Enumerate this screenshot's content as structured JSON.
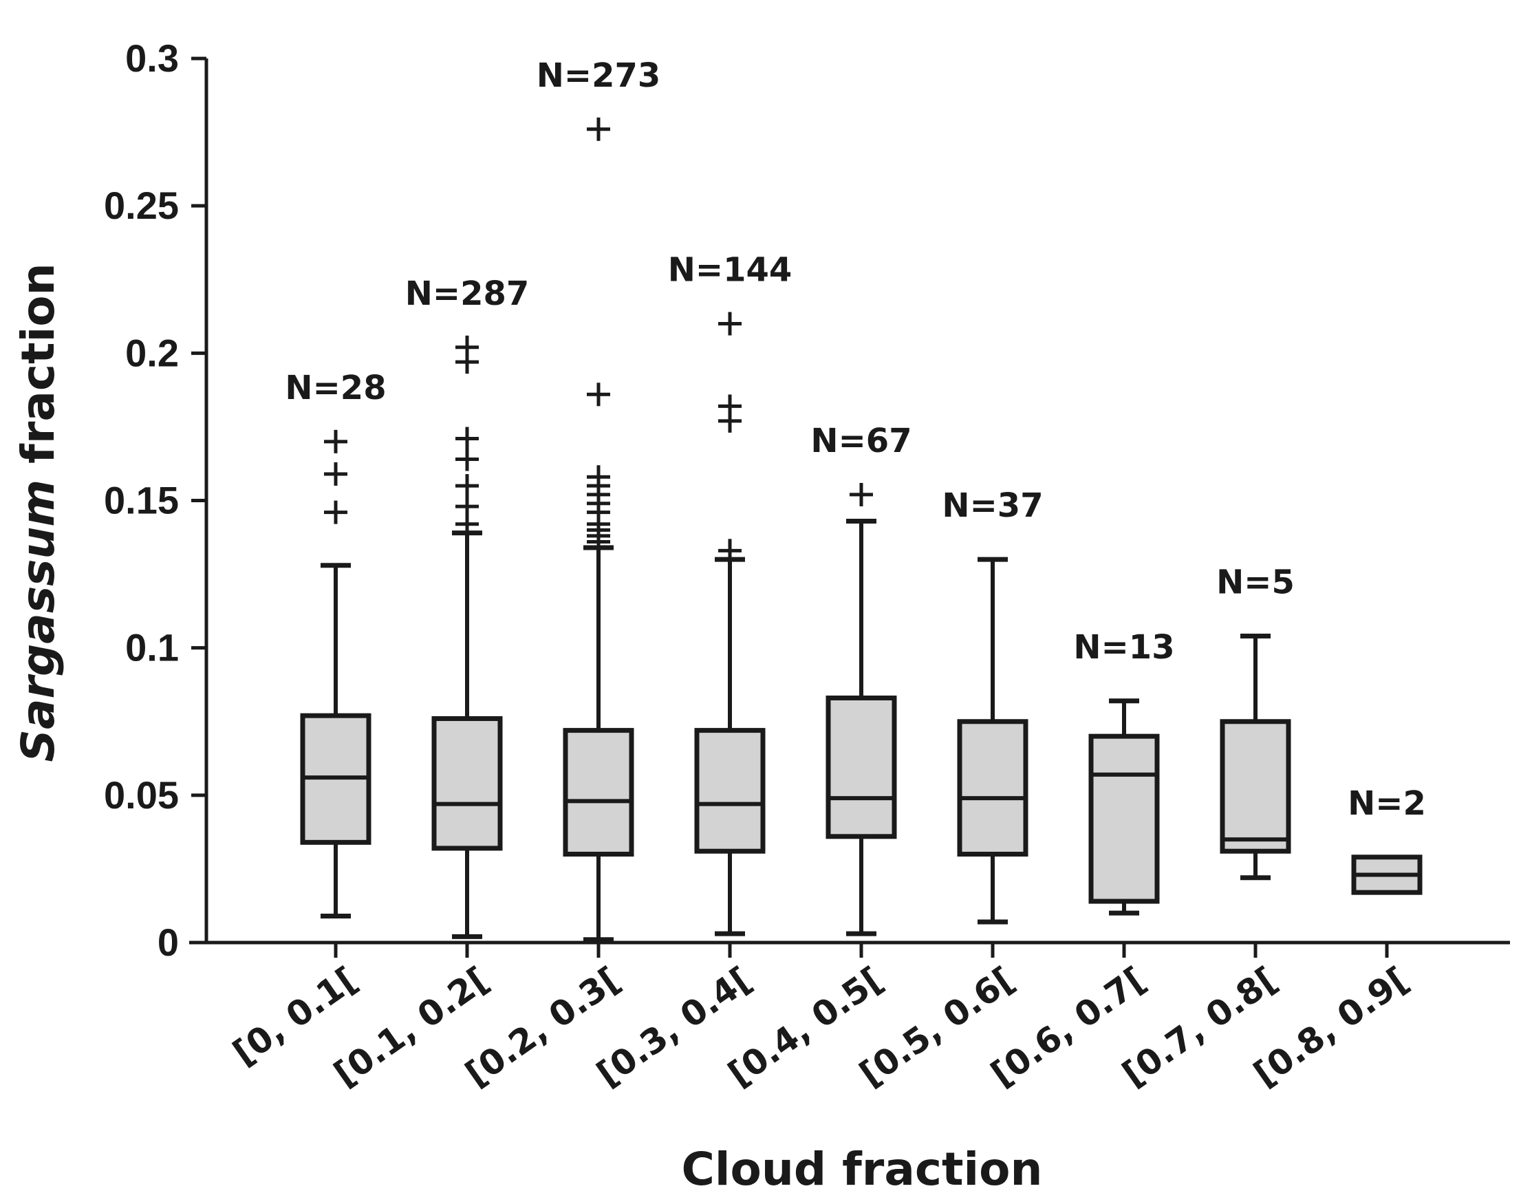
{
  "chart_data": {
    "type": "box",
    "xlabel": "Cloud fraction",
    "ylabel_italic": "Sargassum",
    "ylabel_rest": " fraction",
    "ylim": [
      0,
      0.3
    ],
    "yticks": [
      0,
      0.05,
      0.1,
      0.15,
      0.2,
      0.25,
      0.3
    ],
    "ytick_labels": [
      "0",
      "0.05",
      "0.1",
      "0.15",
      "0.2",
      "0.25",
      "0.3"
    ],
    "categories": [
      "[0, 0.1[",
      "[0.1, 0.2[",
      "[0.2, 0.3[",
      "[0.3, 0.4[",
      "[0.4, 0.5[",
      "[0.5, 0.6[",
      "[0.6, 0.7[",
      "[0.7, 0.8[",
      "[0.8, 0.9["
    ],
    "counts": [
      "N=28",
      "N=287",
      "N=273",
      "N=144",
      "N=67",
      "N=37",
      "N=13",
      "N=5",
      "N=2"
    ],
    "boxes": [
      {
        "whisker_low": 0.009,
        "q1": 0.034,
        "median": 0.056,
        "q3": 0.077,
        "whisker_high": 0.128,
        "outliers": [
          0.146,
          0.159,
          0.17
        ]
      },
      {
        "whisker_low": 0.002,
        "q1": 0.032,
        "median": 0.047,
        "q3": 0.076,
        "whisker_high": 0.139,
        "outliers": [
          0.142,
          0.148,
          0.155,
          0.164,
          0.171,
          0.197,
          0.202
        ]
      },
      {
        "whisker_low": 0.001,
        "q1": 0.03,
        "median": 0.048,
        "q3": 0.072,
        "whisker_high": 0.134,
        "outliers": [
          0.136,
          0.138,
          0.14,
          0.142,
          0.146,
          0.149,
          0.152,
          0.155,
          0.158,
          0.186,
          0.276
        ]
      },
      {
        "whisker_low": 0.003,
        "q1": 0.031,
        "median": 0.047,
        "q3": 0.072,
        "whisker_high": 0.13,
        "outliers": [
          0.133,
          0.177,
          0.182,
          0.21
        ]
      },
      {
        "whisker_low": 0.003,
        "q1": 0.036,
        "median": 0.049,
        "q3": 0.083,
        "whisker_high": 0.143,
        "outliers": [
          0.152
        ]
      },
      {
        "whisker_low": 0.007,
        "q1": 0.03,
        "median": 0.049,
        "q3": 0.075,
        "whisker_high": 0.13,
        "outliers": []
      },
      {
        "whisker_low": 0.01,
        "q1": 0.014,
        "median": 0.057,
        "q3": 0.07,
        "whisker_high": 0.082,
        "outliers": []
      },
      {
        "whisker_low": 0.022,
        "q1": 0.031,
        "median": 0.035,
        "q3": 0.075,
        "whisker_high": 0.104,
        "outliers": []
      },
      {
        "whisker_low": 0.017,
        "q1": 0.017,
        "median": 0.023,
        "q3": 0.029,
        "whisker_high": 0.029,
        "outliers": []
      }
    ],
    "grid": false,
    "legend": "none"
  }
}
